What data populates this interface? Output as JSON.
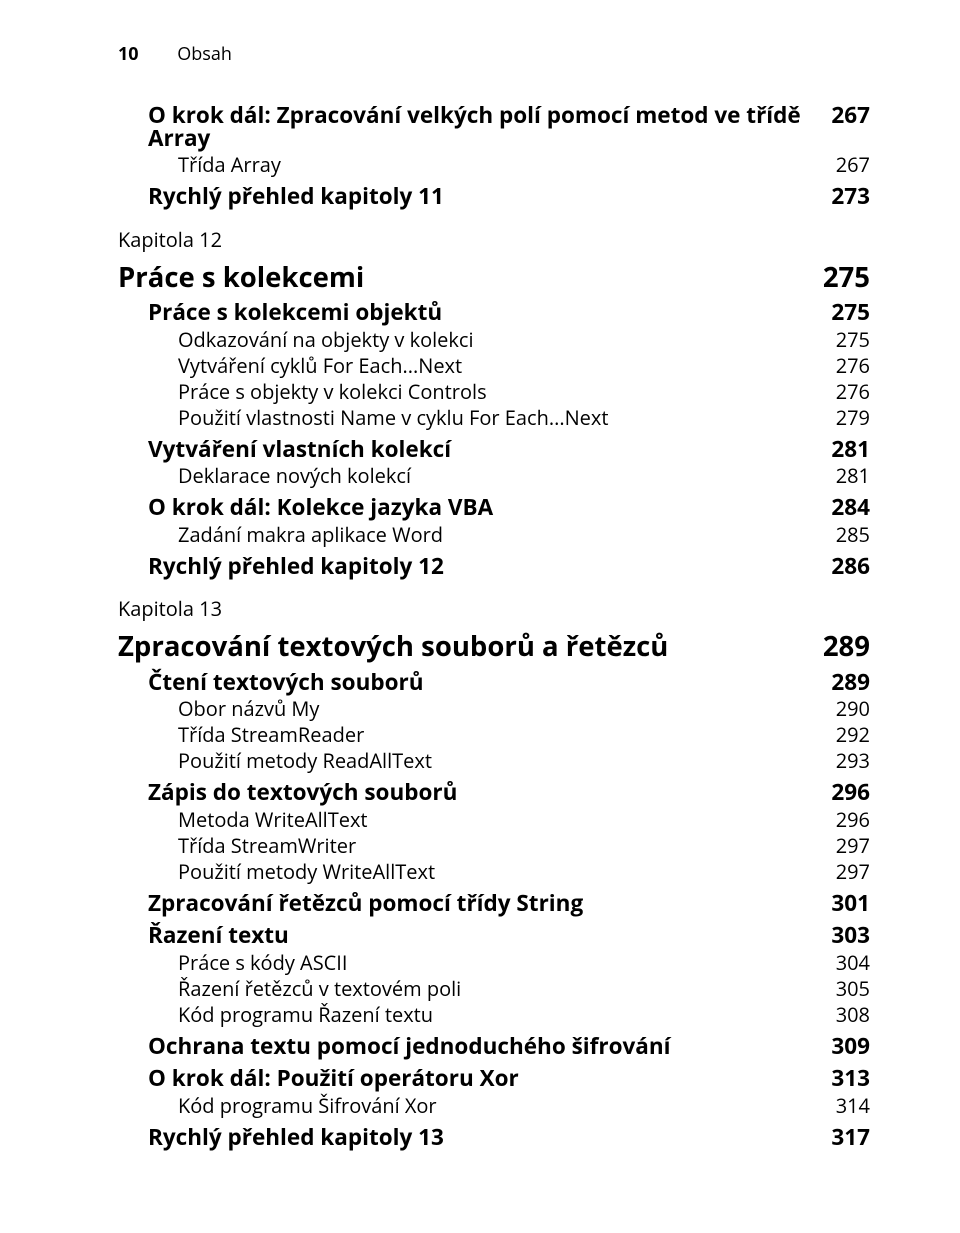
{
  "header": {
    "page_number": "10",
    "running_title": "Obsah"
  },
  "toc": {
    "items": [
      {
        "label": "O krok dál: Zpracování velkých polí pomocí metod ve třídě Array",
        "num": "267",
        "style": "section",
        "indent": 1
      },
      {
        "label": "Třída Array",
        "num": "267",
        "style": "normal",
        "indent": 2
      },
      {
        "label": "Rychlý přehled kapitoly 11",
        "num": "273",
        "style": "section",
        "indent": 1
      },
      {
        "label": "Kapitola 12",
        "num": "",
        "style": "kicker",
        "indent": 0
      },
      {
        "label": "Práce s kolekcemi",
        "num": "275",
        "style": "chapter",
        "indent": 0
      },
      {
        "label": "Práce s kolekcemi objektů",
        "num": "275",
        "style": "section",
        "indent": 1
      },
      {
        "label": "Odkazování na objekty v kolekci",
        "num": "275",
        "style": "normal",
        "indent": 2
      },
      {
        "label": "Vytváření cyklů For Each...Next",
        "num": "276",
        "style": "normal",
        "indent": 2
      },
      {
        "label": "Práce s objekty v kolekci Controls",
        "num": "276",
        "style": "normal",
        "indent": 2
      },
      {
        "label": "Použití vlastnosti Name v cyklu For Each...Next",
        "num": "279",
        "style": "normal",
        "indent": 2
      },
      {
        "label": "Vytváření vlastních kolekcí",
        "num": "281",
        "style": "section",
        "indent": 1
      },
      {
        "label": "Deklarace nových kolekcí",
        "num": "281",
        "style": "normal",
        "indent": 2
      },
      {
        "label": "O krok dál: Kolekce jazyka VBA",
        "num": "284",
        "style": "section",
        "indent": 1
      },
      {
        "label": "Zadání makra aplikace Word",
        "num": "285",
        "style": "normal",
        "indent": 2
      },
      {
        "label": "Rychlý přehled kapitoly 12",
        "num": "286",
        "style": "section",
        "indent": 1
      },
      {
        "label": "Kapitola 13",
        "num": "",
        "style": "kicker",
        "indent": 0
      },
      {
        "label": "Zpracování textových souborů a řetězců",
        "num": "289",
        "style": "chapter",
        "indent": 0
      },
      {
        "label": "Čtení textových souborů",
        "num": "289",
        "style": "section",
        "indent": 1
      },
      {
        "label": "Obor názvů My",
        "num": "290",
        "style": "normal",
        "indent": 2
      },
      {
        "label": "Třída StreamReader",
        "num": "292",
        "style": "normal",
        "indent": 2
      },
      {
        "label": "Použití metody ReadAllText",
        "num": "293",
        "style": "normal",
        "indent": 2
      },
      {
        "label": "Zápis do textových souborů",
        "num": "296",
        "style": "section",
        "indent": 1
      },
      {
        "label": "Metoda WriteAllText",
        "num": "296",
        "style": "normal",
        "indent": 2
      },
      {
        "label": "Třída StreamWriter",
        "num": "297",
        "style": "normal",
        "indent": 2
      },
      {
        "label": "Použití metody WriteAllText",
        "num": "297",
        "style": "normal",
        "indent": 2
      },
      {
        "label": "Zpracování řetězců pomocí třídy String",
        "num": "301",
        "style": "section",
        "indent": 1
      },
      {
        "label": "Řazení textu",
        "num": "303",
        "style": "section",
        "indent": 1
      },
      {
        "label": "Práce s kódy ASCII",
        "num": "304",
        "style": "normal",
        "indent": 2
      },
      {
        "label": "Řazení řetězců v textovém poli",
        "num": "305",
        "style": "normal",
        "indent": 2
      },
      {
        "label": "Kód programu Řazení textu",
        "num": "308",
        "style": "normal",
        "indent": 2
      },
      {
        "label": "Ochrana textu pomocí jednoduchého šifrování",
        "num": "309",
        "style": "section",
        "indent": 1
      },
      {
        "label": "O krok dál: Použití operátoru Xor",
        "num": "313",
        "style": "section",
        "indent": 1
      },
      {
        "label": "Kód programu Šifrování Xor",
        "num": "314",
        "style": "normal",
        "indent": 2
      },
      {
        "label": "Rychlý přehled kapitoly 13",
        "num": "317",
        "style": "section",
        "indent": 1
      }
    ]
  }
}
